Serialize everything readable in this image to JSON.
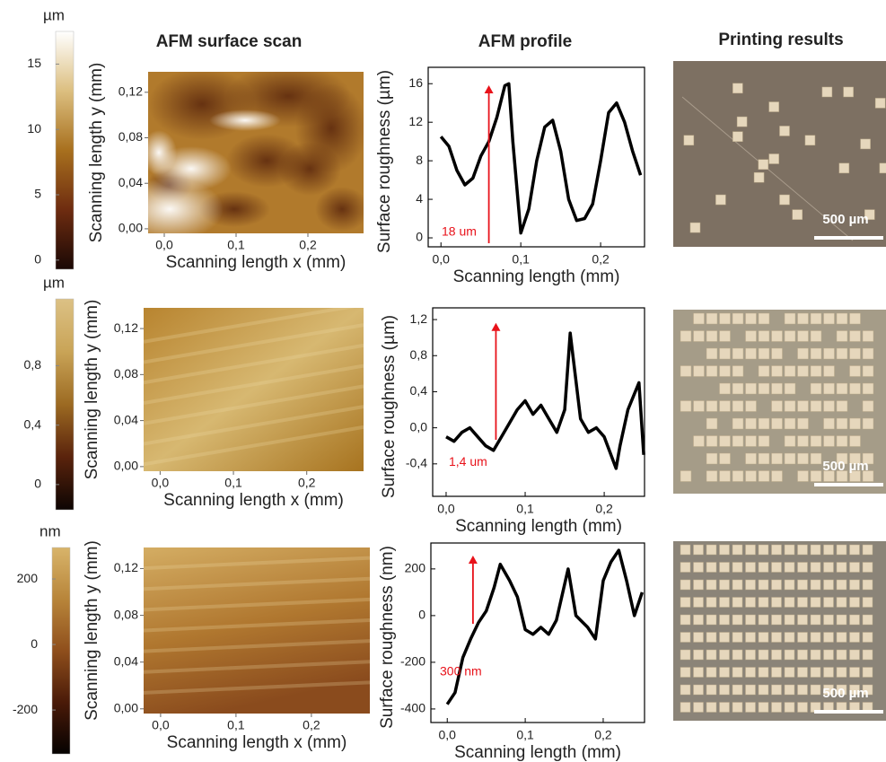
{
  "columns": [
    "AFM surface scan",
    "AFM profile",
    "Printing results"
  ],
  "chart_data": [
    {
      "type": "colorbar",
      "unit": "µm",
      "ylim": [
        -0.7,
        17.5
      ],
      "yticks": [
        0,
        5,
        10,
        15
      ],
      "colors": [
        "#1a0805",
        "#6e2c10",
        "#a8701e",
        "#dcbf80",
        "#ffffff"
      ]
    },
    {
      "type": "heatmap",
      "xlabel": "Scanning length x (mm)",
      "ylabel": "Scanning length y (mm)",
      "xlim": [
        -0.0225,
        0.2775
      ],
      "ylim": [
        -0.004,
        0.138
      ],
      "xticks": [
        {
          "value": 0,
          "label": "0,0"
        },
        {
          "value": 0.1,
          "label": "0,1"
        },
        {
          "value": 0.2,
          "label": "0,2"
        }
      ],
      "yticks": [
        {
          "value": 0,
          "label": "0,00"
        },
        {
          "value": 0.04,
          "label": "0,04"
        },
        {
          "value": 0.08,
          "label": "0,08"
        },
        {
          "value": 0.12,
          "label": "0,12"
        }
      ]
    },
    {
      "type": "line",
      "xlabel": "Scanning length (mm)",
      "ylabel": "Surface roughness (µm)",
      "annotation": "18 um",
      "color": "#000000",
      "xlim": [
        -0.016,
        0.255
      ],
      "ylim": [
        -0.93,
        17.7
      ],
      "xticks": [
        {
          "value": 0,
          "label": "0,0"
        },
        {
          "value": 0.1,
          "label": "0,1"
        },
        {
          "value": 0.2,
          "label": "0,2"
        }
      ],
      "yticks": [
        0,
        4,
        8,
        12,
        16
      ],
      "x": [
        0,
        0.01,
        0.02,
        0.03,
        0.04,
        0.05,
        0.06,
        0.07,
        0.08,
        0.085,
        0.09,
        0.1,
        0.11,
        0.12,
        0.13,
        0.14,
        0.15,
        0.16,
        0.17,
        0.18,
        0.19,
        0.2,
        0.21,
        0.22,
        0.23,
        0.24,
        0.25
      ],
      "values": [
        10.5,
        9.5,
        7,
        5.5,
        6.2,
        8.5,
        10,
        12.5,
        15.8,
        16,
        10,
        0.5,
        3,
        8,
        11.5,
        12.2,
        9,
        4,
        1.8,
        2,
        3.5,
        8,
        13,
        14,
        12,
        9,
        6.5
      ]
    },
    {
      "type": "colorbar",
      "unit": "µm",
      "ylim": [
        -0.17,
        1.25
      ],
      "yticks": [
        0,
        {
          "value": 0.4,
          "label": "0,4"
        },
        {
          "value": 0.8,
          "label": "0,8"
        }
      ],
      "colors": [
        "#0d0503",
        "#5a230c",
        "#9c6a22",
        "#c9a457",
        "#dcc185"
      ]
    },
    {
      "type": "heatmap",
      "xlabel": "Scanning length x (mm)",
      "ylabel": "Scanning length y (mm)",
      "xlim": [
        -0.0225,
        0.2775
      ],
      "ylim": [
        -0.004,
        0.138
      ],
      "xticks": [
        {
          "value": 0,
          "label": "0,0"
        },
        {
          "value": 0.1,
          "label": "0,1"
        },
        {
          "value": 0.2,
          "label": "0,2"
        }
      ],
      "yticks": [
        {
          "value": 0,
          "label": "0,00"
        },
        {
          "value": 0.04,
          "label": "0,04"
        },
        {
          "value": 0.08,
          "label": "0,08"
        },
        {
          "value": 0.12,
          "label": "0,12"
        }
      ]
    },
    {
      "type": "line",
      "xlabel": "Scanning length (mm)",
      "ylabel": "Surface roughness (µm)",
      "annotation": "1,4 um",
      "color": "#000000",
      "xlim": [
        -0.017,
        0.251
      ],
      "ylim": [
        -0.76,
        1.33
      ],
      "xticks": [
        {
          "value": 0,
          "label": "0,0"
        },
        {
          "value": 0.1,
          "label": "0,1"
        },
        {
          "value": 0.2,
          "label": "0,2"
        }
      ],
      "yticks": [
        {
          "value": -0.4,
          "label": "-0,4"
        },
        {
          "value": 0,
          "label": "0,0"
        },
        {
          "value": 0.4,
          "label": "0,4"
        },
        {
          "value": 0.8,
          "label": "0,8"
        },
        {
          "value": 1.2,
          "label": "1,2"
        }
      ],
      "x": [
        0,
        0.01,
        0.02,
        0.03,
        0.04,
        0.05,
        0.06,
        0.07,
        0.08,
        0.09,
        0.1,
        0.11,
        0.12,
        0.13,
        0.14,
        0.15,
        0.157,
        0.17,
        0.18,
        0.19,
        0.2,
        0.215,
        0.22,
        0.23,
        0.244,
        0.25
      ],
      "values": [
        -0.1,
        -0.15,
        -0.05,
        0,
        -0.1,
        -0.2,
        -0.25,
        -0.1,
        0.05,
        0.2,
        0.3,
        0.15,
        0.25,
        0.1,
        -0.05,
        0.2,
        1.05,
        0.1,
        -0.05,
        0,
        -0.1,
        -0.45,
        -0.2,
        0.2,
        0.5,
        -0.3
      ]
    },
    {
      "type": "colorbar",
      "unit": "nm",
      "ylim": [
        -334,
        296
      ],
      "yticks": [
        -200,
        0,
        200
      ],
      "colors": [
        "#050201",
        "#4a1a08",
        "#8f4f1c",
        "#b8853a",
        "#d8b46a"
      ]
    },
    {
      "type": "heatmap",
      "xlabel": "Scanning length x (mm)",
      "ylabel": "Scanning length y (mm)",
      "xlim": [
        -0.0225,
        0.2775
      ],
      "ylim": [
        -0.004,
        0.138
      ],
      "xticks": [
        {
          "value": 0,
          "label": "0,0"
        },
        {
          "value": 0.1,
          "label": "0,1"
        },
        {
          "value": 0.2,
          "label": "0,2"
        }
      ],
      "yticks": [
        {
          "value": 0,
          "label": "0,00"
        },
        {
          "value": 0.04,
          "label": "0,04"
        },
        {
          "value": 0.08,
          "label": "0,08"
        },
        {
          "value": 0.12,
          "label": "0,12"
        }
      ]
    },
    {
      "type": "line",
      "xlabel": "Scanning length (mm)",
      "ylabel": "Surface roughness (nm)",
      "annotation": "300 nm",
      "color": "#000000",
      "xlim": [
        -0.021,
        0.253
      ],
      "ylim": [
        -458,
        311
      ],
      "xticks": [
        {
          "value": 0,
          "label": "0,0"
        },
        {
          "value": 0.1,
          "label": "0,1"
        },
        {
          "value": 0.2,
          "label": "0,2"
        }
      ],
      "yticks": [
        -400,
        -200,
        0,
        200
      ],
      "x": [
        0,
        0.01,
        0.02,
        0.03,
        0.04,
        0.05,
        0.06,
        0.068,
        0.08,
        0.09,
        0.1,
        0.11,
        0.12,
        0.13,
        0.14,
        0.155,
        0.165,
        0.18,
        0.19,
        0.2,
        0.21,
        0.22,
        0.23,
        0.24,
        0.25
      ],
      "values": [
        -380,
        -330,
        -180,
        -100,
        -30,
        20,
        120,
        220,
        150,
        80,
        -60,
        -80,
        -50,
        -80,
        -20,
        200,
        0,
        -50,
        -100,
        150,
        230,
        280,
        150,
        0,
        100
      ]
    }
  ],
  "photos": [
    {
      "scale_label": "500 µm"
    },
    {
      "scale_label": "500 µm"
    },
    {
      "scale_label": "500 µm"
    }
  ]
}
